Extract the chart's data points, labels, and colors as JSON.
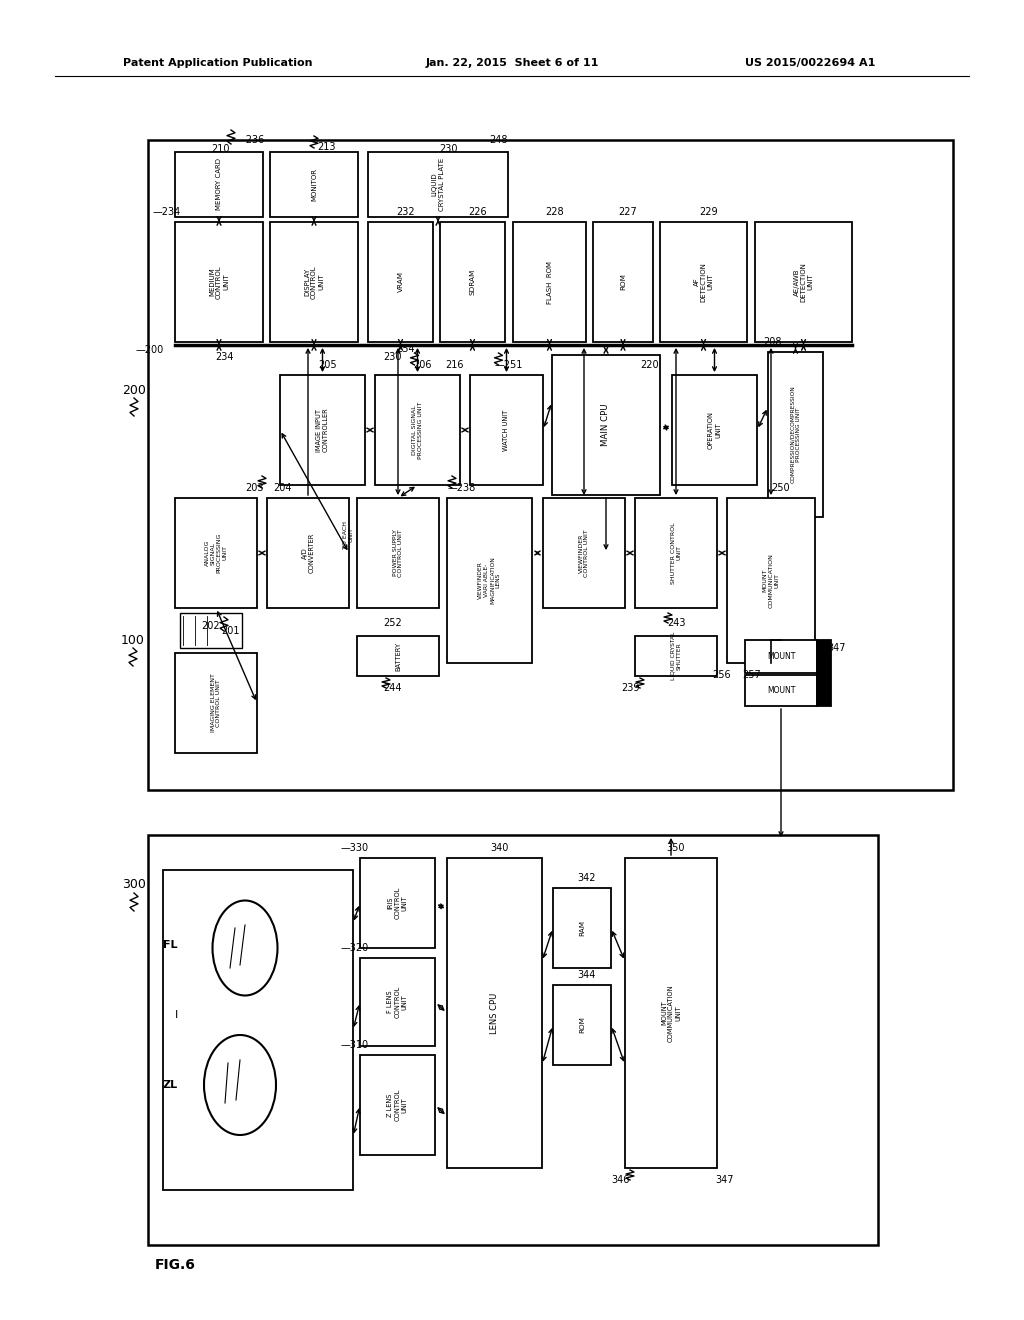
{
  "header_left": "Patent Application Publication",
  "header_mid": "Jan. 22, 2015  Sheet 6 of 11",
  "header_right": "US 2015/0022694 A1",
  "fig_label": "FIG.6"
}
